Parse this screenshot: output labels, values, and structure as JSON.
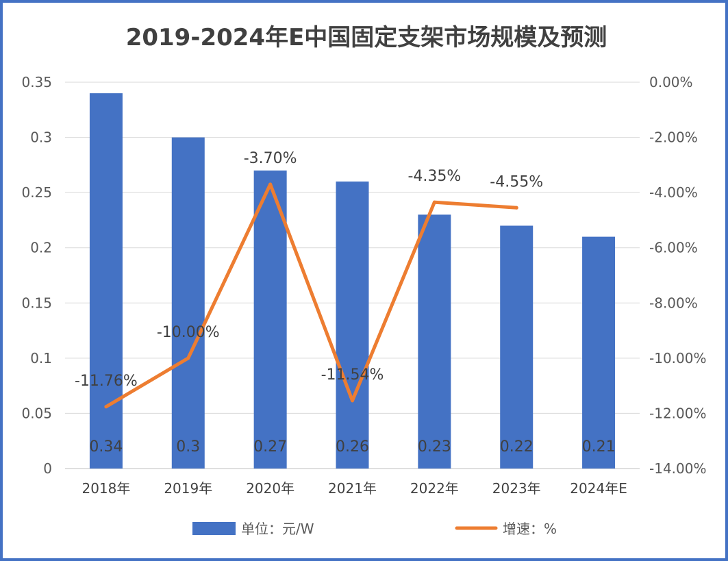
{
  "chart_data": {
    "type": "bar+line",
    "title": "2019-2024年E中国固定支架市场规模及预测",
    "categories": [
      "2018年",
      "2019年",
      "2020年",
      "2021年",
      "2022年",
      "2023年",
      "2024年E"
    ],
    "series": [
      {
        "name": "单位：元/W",
        "type": "bar",
        "axis": "left",
        "values": [
          0.34,
          0.3,
          0.27,
          0.26,
          0.23,
          0.22,
          0.21
        ],
        "labels": [
          "0.34",
          "0.3",
          "0.27",
          "0.26",
          "0.23",
          "0.22",
          "0.21"
        ],
        "color": "#4472c4"
      },
      {
        "name": "增速：%",
        "type": "line",
        "axis": "right",
        "values": [
          -11.76,
          -10.0,
          -3.7,
          -11.54,
          -4.35,
          -4.55,
          null
        ],
        "labels": [
          "-11.76%",
          "-10.00%",
          "-3.70%",
          "-11.54%",
          "-4.35%",
          "-4.55%",
          ""
        ],
        "color": "#ed7d31"
      }
    ],
    "y_left": {
      "range": [
        0,
        0.35
      ],
      "ticks": [
        0,
        0.05,
        0.1,
        0.15,
        0.2,
        0.25,
        0.3,
        0.35
      ],
      "tick_labels": [
        "0",
        "0.05",
        "0.1",
        "0.15",
        "0.2",
        "0.25",
        "0.3",
        "0.35"
      ]
    },
    "y_right": {
      "range": [
        -14,
        0
      ],
      "ticks": [
        -14,
        -12,
        -10,
        -8,
        -6,
        -4,
        -2,
        0
      ],
      "tick_labels": [
        "-14.00%",
        "-12.00%",
        "-10.00%",
        "-8.00%",
        "-6.00%",
        "-4.00%",
        "-2.00%",
        "0.00%"
      ]
    },
    "grid": true,
    "legend_position": "bottom"
  }
}
